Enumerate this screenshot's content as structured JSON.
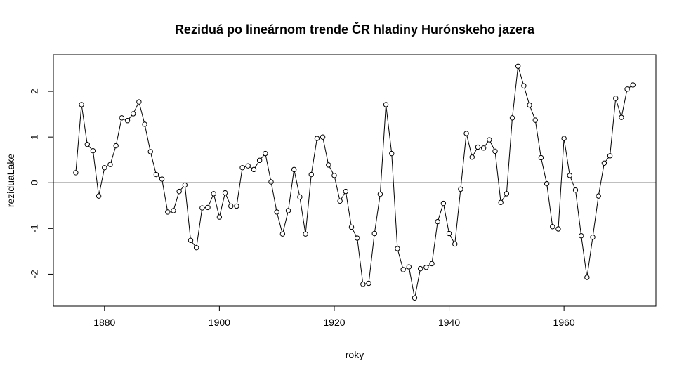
{
  "chart_data": {
    "type": "line",
    "title": "Reziduá po lineárnom trende ČR hladiny Hurónskeho jazera",
    "xlabel": "roky",
    "ylabel": "rezidualake",
    "ylabel_display": "reziduaLake",
    "xlim": [
      1871.1,
      1976.0
    ],
    "ylim": [
      -2.7,
      2.8
    ],
    "x_ticks": [
      1880,
      1900,
      1920,
      1940,
      1960
    ],
    "y_ticks": [
      -2,
      -1,
      0,
      1,
      2
    ],
    "x_tick_labels": [
      "1880",
      "1900",
      "1920",
      "1940",
      "1960"
    ],
    "y_tick_labels": [
      "-2",
      "-1",
      "0",
      "1",
      "2"
    ],
    "reference_line_y": 0,
    "marker": "open-circle",
    "x": [
      1875,
      1876,
      1877,
      1878,
      1879,
      1880,
      1881,
      1882,
      1883,
      1884,
      1885,
      1886,
      1887,
      1888,
      1889,
      1890,
      1891,
      1892,
      1893,
      1894,
      1895,
      1896,
      1897,
      1898,
      1899,
      1900,
      1901,
      1902,
      1903,
      1904,
      1905,
      1906,
      1907,
      1908,
      1909,
      1910,
      1911,
      1912,
      1913,
      1914,
      1915,
      1916,
      1917,
      1918,
      1919,
      1920,
      1921,
      1922,
      1923,
      1924,
      1925,
      1926,
      1927,
      1928,
      1929,
      1930,
      1931,
      1932,
      1933,
      1934,
      1935,
      1936,
      1937,
      1938,
      1939,
      1940,
      1941,
      1942,
      1943,
      1944,
      1945,
      1946,
      1947,
      1948,
      1949,
      1950,
      1951,
      1952,
      1953,
      1954,
      1955,
      1956,
      1957,
      1958,
      1959,
      1960,
      1961,
      1962,
      1963,
      1964,
      1965,
      1966,
      1967,
      1968,
      1969,
      1970,
      1971,
      1972
    ],
    "values": [
      0.22,
      1.71,
      0.84,
      0.7,
      -0.29,
      0.33,
      0.4,
      0.81,
      1.42,
      1.36,
      1.51,
      1.77,
      1.28,
      0.68,
      0.18,
      0.08,
      -0.64,
      -0.61,
      -0.19,
      -0.05,
      -1.26,
      -1.42,
      -0.55,
      -0.54,
      -0.24,
      -0.75,
      -0.22,
      -0.51,
      -0.51,
      0.33,
      0.37,
      0.29,
      0.49,
      0.64,
      0.02,
      -0.64,
      -1.12,
      -0.61,
      0.29,
      -0.31,
      -1.12,
      0.18,
      0.97,
      1.0,
      0.39,
      0.16,
      -0.4,
      -0.19,
      -0.97,
      -1.21,
      -2.22,
      -2.2,
      -1.11,
      -0.25,
      1.71,
      0.64,
      -1.44,
      -1.9,
      -1.84,
      -2.52,
      -1.88,
      -1.85,
      -1.77,
      -0.85,
      -0.45,
      -1.11,
      -1.34,
      -0.14,
      1.08,
      0.56,
      0.78,
      0.76,
      0.94,
      0.69,
      -0.43,
      -0.24,
      1.42,
      2.55,
      2.12,
      1.7,
      1.37,
      0.55,
      -0.02,
      -0.96,
      -1.01,
      0.97,
      0.16,
      -0.16,
      -1.16,
      -2.07,
      -1.19,
      -0.29,
      0.43,
      0.59,
      1.85,
      1.43,
      2.05,
      2.14
    ]
  }
}
